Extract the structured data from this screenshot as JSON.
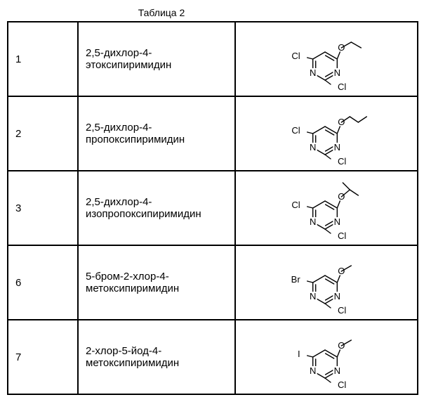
{
  "caption": "Таблица 2",
  "rows": [
    {
      "num": "1",
      "name": "2,5-дихлор-4-этоксипиримидин",
      "r5": "Cl",
      "alkoxy": "ethoxy"
    },
    {
      "num": "2",
      "name": "2,5-дихлор-4-пропоксипиримидин",
      "r5": "Cl",
      "alkoxy": "propoxy"
    },
    {
      "num": "3",
      "name": "2,5-дихлор-4-изопропоксипиримидин",
      "r5": "Cl",
      "alkoxy": "isopropoxy"
    },
    {
      "num": "6",
      "name": "5-бром-2-хлор-4-метоксипиримидин",
      "r5": "Br",
      "alkoxy": "methoxy"
    },
    {
      "num": "7",
      "name": "2-хлор-5-йод-4-метоксипиримидин",
      "r5": "I",
      "alkoxy": "methoxy"
    }
  ],
  "style": {
    "stroke": "#000000",
    "stroke_width": 1.4,
    "font": "15px Arial",
    "label_font": "14px Arial"
  }
}
